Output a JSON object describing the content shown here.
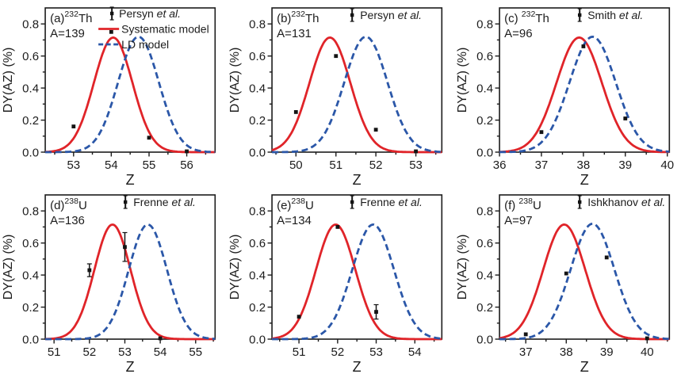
{
  "figure": {
    "xlabel": "Z",
    "ylabel": "DY(AZ) (%)",
    "ylim": [
      0,
      0.9
    ],
    "yticks": [
      "0.0",
      "0.2",
      "0.4",
      "0.6",
      "0.8"
    ],
    "colors": {
      "systematic": "#e02429",
      "ld": "#2b57a8",
      "data": "#141414",
      "axis": "#1c1c1c"
    }
  },
  "chart_data": [
    {
      "id": "a",
      "type": "line",
      "title_prefix": "(a)",
      "nuclide_mass": "232",
      "nuclide_symbol": "Th",
      "mass_number_label": "A=139",
      "xlim": [
        52.25,
        56.75
      ],
      "xticks": [
        53,
        54,
        55,
        56
      ],
      "legend": [
        {
          "style": "errorbar",
          "label": "Persyn et al."
        },
        {
          "style": "solid",
          "label": "Systematic model"
        },
        {
          "style": "dashed",
          "label": "LD model"
        }
      ],
      "series": [
        {
          "name": "Systematic model",
          "type": "gaussian",
          "style": "solid",
          "color_key": "systematic",
          "peak": 54.05,
          "sigma": 0.51,
          "height": 0.715
        },
        {
          "name": "LD model",
          "type": "gaussian",
          "style": "dashed",
          "color_key": "ld",
          "peak": 54.72,
          "sigma": 0.54,
          "height": 0.72
        },
        {
          "name": "Persyn et al.",
          "type": "points",
          "points": [
            [
              53,
              0.16
            ],
            [
              54,
              0.75
            ],
            [
              55,
              0.09
            ],
            [
              56,
              0.005
            ]
          ]
        }
      ]
    },
    {
      "id": "b",
      "type": "line",
      "title_prefix": "(b)",
      "nuclide_mass": "232",
      "nuclide_symbol": "Th",
      "mass_number_label": "A=131",
      "xlim": [
        49.4,
        53.65
      ],
      "xticks": [
        50,
        51,
        52,
        53
      ],
      "legend": [
        {
          "style": "errorbar",
          "label": "Persyn et al."
        }
      ],
      "series": [
        {
          "name": "Systematic model",
          "type": "gaussian",
          "style": "solid",
          "color_key": "systematic",
          "peak": 50.85,
          "sigma": 0.51,
          "height": 0.715
        },
        {
          "name": "LD model",
          "type": "gaussian",
          "style": "dashed",
          "color_key": "ld",
          "peak": 51.75,
          "sigma": 0.54,
          "height": 0.72
        },
        {
          "name": "Persyn et al.",
          "type": "points",
          "points": [
            [
              50,
              0.25
            ],
            [
              51,
              0.6
            ],
            [
              52,
              0.14
            ],
            [
              53,
              0.005
            ]
          ]
        }
      ]
    },
    {
      "id": "c",
      "type": "line",
      "title_prefix": "(c) ",
      "nuclide_mass": "232",
      "nuclide_symbol": "Th",
      "mass_number_label": "A=96",
      "xlim": [
        36.0,
        40.05
      ],
      "xticks": [
        36,
        37,
        38,
        39,
        40
      ],
      "legend": [
        {
          "style": "errorbar",
          "label": "Smith et al."
        }
      ],
      "series": [
        {
          "name": "Systematic model",
          "type": "gaussian",
          "style": "solid",
          "color_key": "systematic",
          "peak": 37.9,
          "sigma": 0.54,
          "height": 0.715
        },
        {
          "name": "LD model",
          "type": "gaussian",
          "style": "dashed",
          "color_key": "ld",
          "peak": 38.22,
          "sigma": 0.55,
          "height": 0.72
        },
        {
          "name": "Smith et al.",
          "type": "points",
          "points": [
            [
              37,
              0.125
            ],
            [
              38,
              0.66
            ],
            [
              39,
              0.21
            ]
          ]
        }
      ]
    },
    {
      "id": "d",
      "type": "line",
      "title_prefix": "(d)",
      "nuclide_mass": "238",
      "nuclide_symbol": "U",
      "mass_number_label": "A=136",
      "xlim": [
        50.75,
        55.55
      ],
      "xticks": [
        51,
        52,
        53,
        54,
        55
      ],
      "legend": [
        {
          "style": "errorbar",
          "label": "Frenne et al."
        }
      ],
      "series": [
        {
          "name": "Systematic model",
          "type": "gaussian",
          "style": "solid",
          "color_key": "systematic",
          "peak": 52.65,
          "sigma": 0.51,
          "height": 0.715
        },
        {
          "name": "LD model",
          "type": "gaussian",
          "style": "dashed",
          "color_key": "ld",
          "peak": 53.65,
          "sigma": 0.54,
          "height": 0.715
        },
        {
          "name": "Frenne et al.",
          "type": "points",
          "points": [
            [
              52,
              0.43,
              0.04
            ],
            [
              53,
              0.575,
              0.09
            ],
            [
              54,
              0.005
            ]
          ]
        }
      ]
    },
    {
      "id": "e",
      "type": "line",
      "title_prefix": "(e)",
      "nuclide_mass": "238",
      "nuclide_symbol": "U",
      "mass_number_label": "A=134",
      "xlim": [
        50.3,
        54.7
      ],
      "xticks": [
        51,
        52,
        53,
        54
      ],
      "legend": [
        {
          "style": "errorbar",
          "label": "Frenne et al."
        }
      ],
      "series": [
        {
          "name": "Systematic model",
          "type": "gaussian",
          "style": "solid",
          "color_key": "systematic",
          "peak": 51.95,
          "sigma": 0.51,
          "height": 0.715
        },
        {
          "name": "LD model",
          "type": "gaussian",
          "style": "dashed",
          "color_key": "ld",
          "peak": 52.92,
          "sigma": 0.54,
          "height": 0.715
        },
        {
          "name": "Frenne et al.",
          "type": "points",
          "points": [
            [
              51,
              0.14
            ],
            [
              52,
              0.7
            ],
            [
              53,
              0.17,
              0.045
            ]
          ]
        }
      ]
    },
    {
      "id": "f",
      "type": "line",
      "title_prefix": "(f) ",
      "nuclide_mass": "238",
      "nuclide_symbol": "U",
      "mass_number_label": "A=97",
      "xlim": [
        36.35,
        40.55
      ],
      "xticks": [
        37,
        38,
        39,
        40
      ],
      "legend": [
        {
          "style": "errorbar",
          "label": "Ishkhanov et al."
        }
      ],
      "series": [
        {
          "name": "Systematic model",
          "type": "gaussian",
          "style": "solid",
          "color_key": "systematic",
          "peak": 37.95,
          "sigma": 0.52,
          "height": 0.715
        },
        {
          "name": "LD model",
          "type": "gaussian",
          "style": "dashed",
          "color_key": "ld",
          "peak": 38.65,
          "sigma": 0.54,
          "height": 0.72
        },
        {
          "name": "Ishkhanov et al.",
          "type": "points",
          "points": [
            [
              37,
              0.03
            ],
            [
              38,
              0.41
            ],
            [
              39,
              0.51
            ],
            [
              40,
              0.005
            ]
          ]
        }
      ]
    }
  ]
}
